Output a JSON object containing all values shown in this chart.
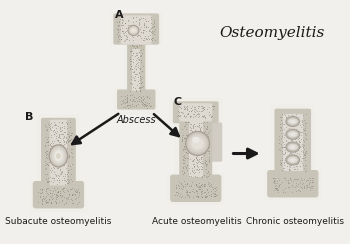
{
  "title": "Osteomyelitis",
  "label_A": "A",
  "label_B": "B",
  "label_C": "C",
  "label_abscess": "Abscess",
  "label_sub": "Subacute osteomyelitis",
  "label_acute": "Acute osteomyelitis",
  "label_chronic": "Chronic osteomyelitis",
  "bg_color": "#f2f0ec",
  "bone_stipple": "#8a8478",
  "bone_bg": "#c8c4b8",
  "cortex_color": "#d8d4cc",
  "marrow_color": "#dedad2",
  "white_border": "#f0eee8",
  "arrow_color": "#1a1a1a",
  "text_color": "#1a1a1a",
  "title_fontsize": 11,
  "label_fontsize": 6.5,
  "tag_fontsize": 8,
  "abscess_fontsize": 7
}
